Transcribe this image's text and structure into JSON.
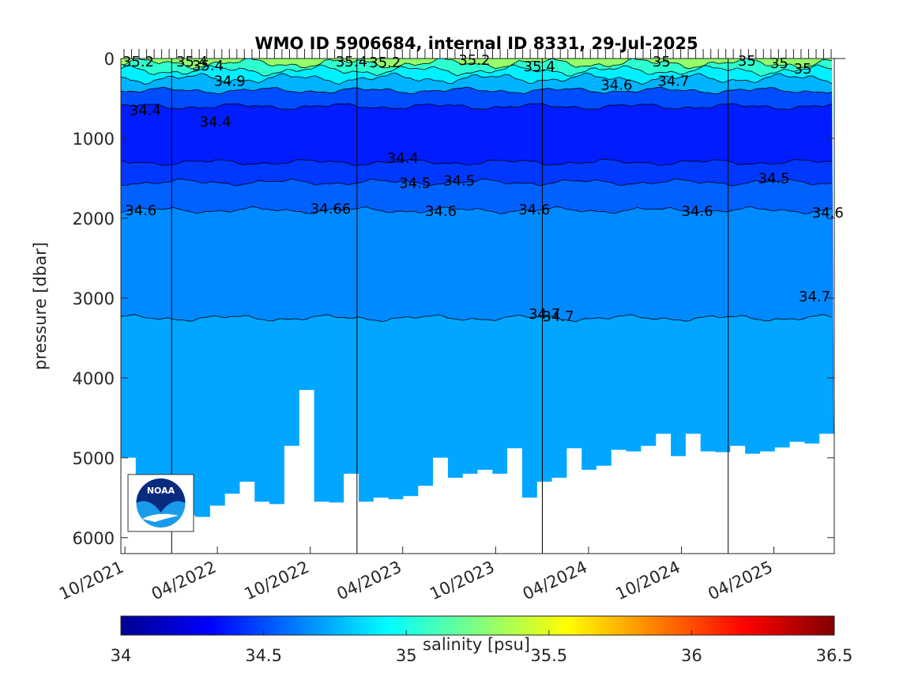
{
  "chart_data": {
    "type": "heatmap",
    "title": "WMO ID 5906684, internal ID 8331, 29-Jul-2025",
    "ylabel": "pressure [dbar]",
    "yaxis_reversed": true,
    "ylim": [
      0,
      6200
    ],
    "yticks": [
      "0",
      "1000",
      "2000",
      "3000",
      "4000",
      "5000",
      "6000"
    ],
    "xlim": [
      "2021-09-23",
      "2025-07-29"
    ],
    "xticks": [
      "10/2021",
      "04/2022",
      "10/2022",
      "04/2023",
      "10/2023",
      "04/2024",
      "10/2024",
      "04/2025"
    ],
    "year_lines": [
      "2022-01-01",
      "2023-01-01",
      "2024-01-01",
      "2025-01-01"
    ],
    "grid": false,
    "colorbar": {
      "label": "salinity [psu]",
      "colormap": "jet",
      "min": 34,
      "max": 36.5,
      "ticks": [
        "34",
        "34.5",
        "35",
        "35.5",
        "36",
        "36.5"
      ]
    },
    "salinity_bands": [
      {
        "top": 0,
        "bottom": 60,
        "value": 35.3
      },
      {
        "top": 60,
        "bottom": 150,
        "value": 35.05
      },
      {
        "top": 150,
        "bottom": 250,
        "value": 34.9
      },
      {
        "top": 250,
        "bottom": 400,
        "value": 34.75
      },
      {
        "top": 400,
        "bottom": 600,
        "value": 34.5
      },
      {
        "top": 600,
        "bottom": 1300,
        "value": 34.38
      },
      {
        "top": 1300,
        "bottom": 1550,
        "value": 34.45
      },
      {
        "top": 1550,
        "bottom": 1900,
        "value": 34.55
      },
      {
        "top": 1900,
        "bottom": 3250,
        "value": 34.65
      },
      {
        "top": 3250,
        "bottom": 6200,
        "value": 34.72
      }
    ],
    "contour_labels": [
      {
        "text": "35.2",
        "date": "2021-09-26",
        "p": 40
      },
      {
        "text": "35.4",
        "date": "2022-01-10",
        "p": 40
      },
      {
        "text": "35.4",
        "date": "2022-02-10",
        "p": 90
      },
      {
        "text": "34.9",
        "date": "2022-03-25",
        "p": 280
      },
      {
        "text": "34.4",
        "date": "2021-10-10",
        "p": 650
      },
      {
        "text": "34.4",
        "date": "2022-02-25",
        "p": 790
      },
      {
        "text": "34.6",
        "date": "2021-10-01",
        "p": 1900
      },
      {
        "text": "35.4",
        "date": "2022-11-20",
        "p": 40
      },
      {
        "text": "35.2",
        "date": "2023-01-25",
        "p": 50
      },
      {
        "text": "35.2",
        "date": "2023-07-20",
        "p": 20
      },
      {
        "text": "34.66",
        "date": "2022-10-01",
        "p": 1880
      },
      {
        "text": "34.4",
        "date": "2023-03-01",
        "p": 1250
      },
      {
        "text": "34.5",
        "date": "2023-03-25",
        "p": 1560
      },
      {
        "text": "34.5",
        "date": "2023-06-20",
        "p": 1530
      },
      {
        "text": "34.6",
        "date": "2023-05-15",
        "p": 1910
      },
      {
        "text": "34.6",
        "date": "2023-11-15",
        "p": 1890
      },
      {
        "text": "35.4",
        "date": "2023-11-25",
        "p": 100
      },
      {
        "text": "34.7",
        "date": "2023-12-05",
        "p": 3200
      },
      {
        "text": "34.7",
        "date": "2024-01-01",
        "p": 3230
      },
      {
        "text": "34.6",
        "date": "2024-04-25",
        "p": 330
      },
      {
        "text": "35",
        "date": "2024-08-05",
        "p": 40
      },
      {
        "text": "34.7",
        "date": "2024-08-15",
        "p": 280
      },
      {
        "text": "34.6",
        "date": "2024-10-01",
        "p": 1910
      },
      {
        "text": "35",
        "date": "2025-01-20",
        "p": 30
      },
      {
        "text": "35",
        "date": "2025-03-25",
        "p": 60
      },
      {
        "text": "35",
        "date": "2025-05-10",
        "p": 130
      },
      {
        "text": "34.5",
        "date": "2025-03-01",
        "p": 1500
      },
      {
        "text": "34.7",
        "date": "2025-05-20",
        "p": 2980
      },
      {
        "text": "34.6",
        "date": "2025-06-15",
        "p": 1930
      }
    ],
    "logo_text": "NOAA"
  }
}
